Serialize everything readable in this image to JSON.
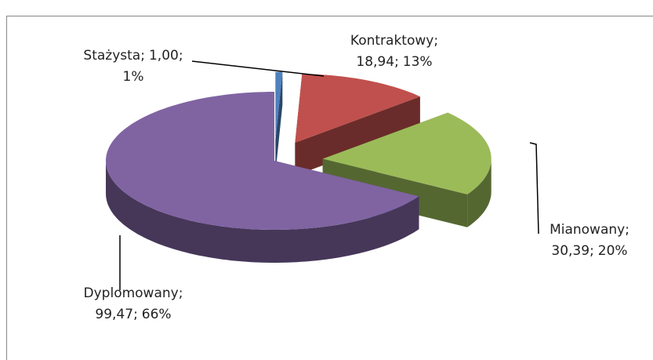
{
  "chart_data": {
    "type": "pie",
    "categories": [
      "Stażysta",
      "Kontraktowy",
      "Mianowany",
      "Dyplomowany"
    ],
    "values": [
      1.0,
      18.94,
      30.39,
      99.47
    ],
    "value_labels": [
      "1,00",
      "18,94",
      "30,39",
      "99,47"
    ],
    "percentage_labels": [
      "1%",
      "13%",
      "20%",
      "66%"
    ],
    "separator": ";",
    "colors": [
      "#4f81bd",
      "#c0504d",
      "#9bbb59",
      "#8064a2"
    ]
  }
}
